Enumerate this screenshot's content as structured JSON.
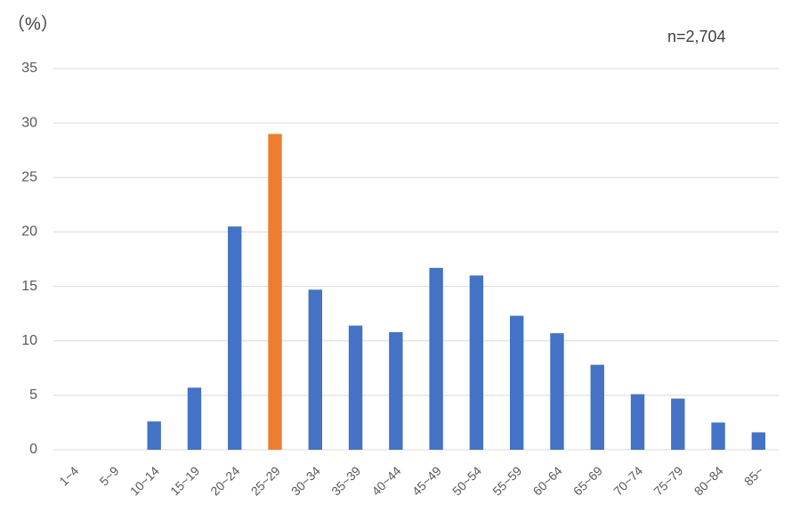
{
  "chart_data": {
    "type": "bar",
    "y_axis_label": "（%）",
    "annotation": "n=2,704",
    "categories": [
      "1~4",
      "5~9",
      "10~14",
      "15~19",
      "20~24",
      "25~29",
      "30~34",
      "35~39",
      "40~44",
      "45~49",
      "50~54",
      "55~59",
      "60~64",
      "65~69",
      "70~74",
      "75~79",
      "80~84",
      "85~"
    ],
    "values": [
      0,
      0,
      2.6,
      5.7,
      20.5,
      29,
      14.7,
      11.4,
      10.8,
      16.7,
      16,
      12.3,
      10.7,
      7.8,
      5.1,
      4.7,
      2.5,
      1.6
    ],
    "colors": [
      "#4472c4",
      "#4472c4",
      "#4472c4",
      "#4472c4",
      "#4472c4",
      "#ed7d31",
      "#4472c4",
      "#4472c4",
      "#4472c4",
      "#4472c4",
      "#4472c4",
      "#4472c4",
      "#4472c4",
      "#4472c4",
      "#4472c4",
      "#4472c4",
      "#4472c4",
      "#4472c4"
    ],
    "ylim": [
      0,
      35
    ],
    "yticks": [
      0,
      5,
      10,
      15,
      20,
      25,
      30,
      35
    ],
    "grid": true
  }
}
